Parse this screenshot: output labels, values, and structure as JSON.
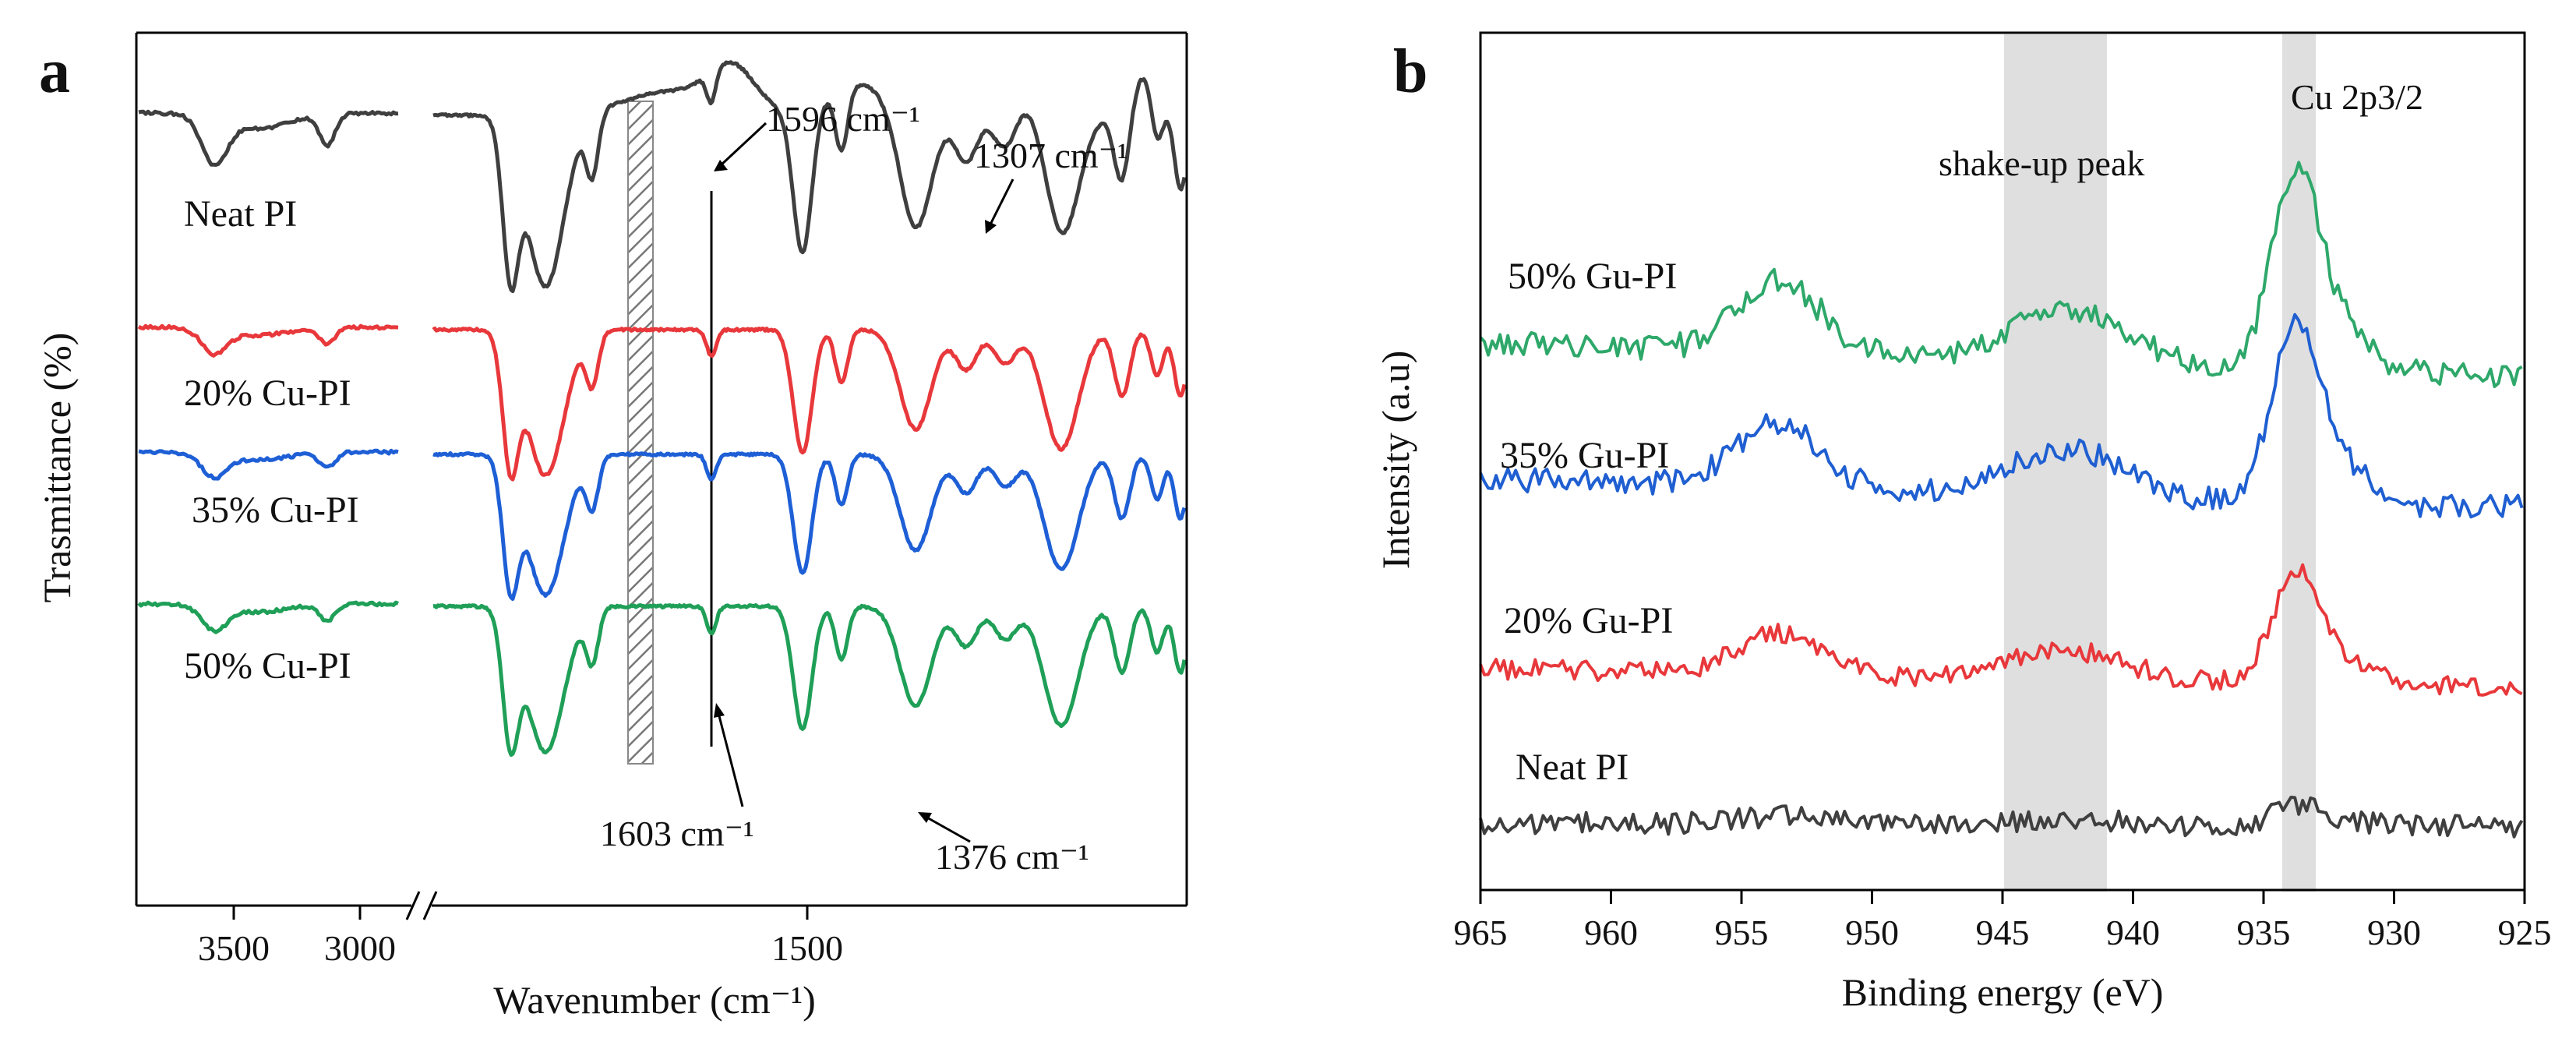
{
  "chart_data": [
    {
      "type": "line",
      "panel_letter": "a",
      "xlabel": "Wavenumber (cm⁻¹)",
      "ylabel": "Trasmittance (%)",
      "x_axis_reversed": true,
      "x_axis_break": true,
      "x_segments": [
        [
          4000,
          2950
        ],
        [
          2600,
          600
        ]
      ],
      "xticks": [
        {
          "value": 3500,
          "label": "3500"
        },
        {
          "value": 3000,
          "label": "3000"
        },
        {
          "value": 1500,
          "label": "1500"
        }
      ],
      "y_ticks_shown": false,
      "series": [
        {
          "name": "Neat PI",
          "label": "Neat PI",
          "color": "#3f3f3f"
        },
        {
          "name": "20% Cu-PI",
          "label": "20% Cu-PI",
          "color": "#e8383b"
        },
        {
          "name": "35% Cu-PI",
          "label": "35% Cu-PI",
          "color": "#1e5fd6"
        },
        {
          "name": "50% Cu-PI",
          "label": "50% Cu-PI",
          "color": "#1f9f57"
        }
      ],
      "annotations": [
        {
          "text": "1596 cm⁻¹",
          "x": 1596
        },
        {
          "text": "1307 cm⁻¹",
          "x": 1307
        },
        {
          "text": "1603 cm⁻¹",
          "x": 1603
        },
        {
          "text": "1376 cm⁻¹",
          "x": 1376
        }
      ],
      "vertical_line_x": 1600,
      "hatched_band": [
        1710,
        1690
      ]
    },
    {
      "type": "line",
      "panel_letter": "b",
      "xlabel": "Binding energy (eV)",
      "ylabel": "Intensity (a.u)",
      "x_axis_reversed": true,
      "xlim": [
        965,
        925
      ],
      "xticks": [
        965,
        960,
        955,
        950,
        945,
        940,
        935,
        930,
        925
      ],
      "y_ticks_shown": false,
      "series": [
        {
          "name": "50% Gu-PI",
          "label": "50% Gu-PI",
          "color": "#2ea86a"
        },
        {
          "name": "35% Gu-PI",
          "label": "35% Gu-PI",
          "color": "#1f5fd1"
        },
        {
          "name": "20% Gu-PI",
          "label": "20% Gu-PI",
          "color": "#e8383b"
        },
        {
          "name": "Neat PI",
          "label": "Neat PI",
          "color": "#3f3f3f"
        }
      ],
      "shaded_regions": [
        {
          "label": "shake-up peak",
          "range": [
            945,
            939
          ]
        },
        {
          "label": "Cu 2p3/2",
          "range": [
            934.3,
            933.1
          ]
        }
      ]
    }
  ]
}
